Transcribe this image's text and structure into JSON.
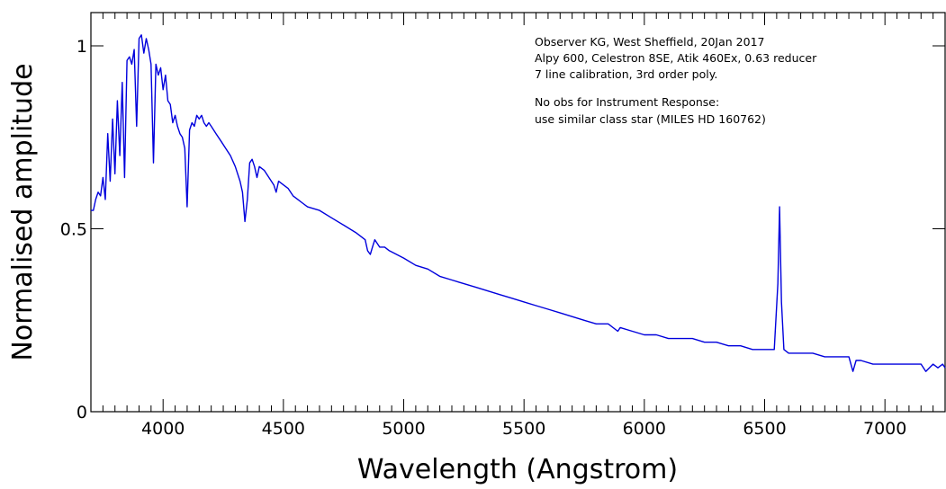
{
  "chart_data": {
    "type": "line",
    "xlabel": "Wavelength  (Angstrom)",
    "ylabel": "Normalised amplitude",
    "xlim": [
      3700,
      7250
    ],
    "ylim": [
      0,
      1.1
    ],
    "x_ticks": [
      4000,
      4500,
      5000,
      5500,
      6000,
      6500,
      7000
    ],
    "x_tick_labels": [
      "4000",
      "4500",
      "5000",
      "5500",
      "6000",
      "6500",
      "7000"
    ],
    "y_ticks": [
      0,
      0.5,
      1
    ],
    "y_tick_labels": [
      "0",
      "0.5",
      "1"
    ],
    "grid": false,
    "line_color": "#0000dd",
    "annotations": [
      "Observer KG, West Sheffield, 20Jan 2017",
      "Alpy 600, Celestron 8SE, Atik 460Ex, 0.63 reducer",
      "7 line calibration, 3rd order poly.",
      "No obs for Instrument Response:",
      "use  similar class star (MILES HD 160762)"
    ],
    "series": [
      {
        "x": [
          3700,
          3710,
          3720,
          3730,
          3740,
          3750,
          3760,
          3770,
          3780,
          3790,
          3800,
          3810,
          3820,
          3830,
          3840,
          3850,
          3860,
          3870,
          3880,
          3890,
          3900,
          3910,
          3920,
          3930,
          3940,
          3950,
          3960,
          3970,
          3980,
          3990,
          4000,
          4010,
          4020,
          4030,
          4040,
          4050,
          4060,
          4070,
          4080,
          4090,
          4100,
          4110,
          4120,
          4130,
          4140,
          4150,
          4160,
          4170,
          4180,
          4190,
          4200,
          4220,
          4240,
          4260,
          4280,
          4300,
          4320,
          4330,
          4340,
          4350,
          4360,
          4370,
          4380,
          4390,
          4400,
          4420,
          4440,
          4460,
          4470,
          4480,
          4500,
          4520,
          4540,
          4560,
          4580,
          4600,
          4650,
          4700,
          4750,
          4800,
          4840,
          4850,
          4861,
          4870,
          4880,
          4900,
          4921,
          4940,
          5000,
          5050,
          5100,
          5150,
          5200,
          5250,
          5300,
          5350,
          5400,
          5450,
          5500,
          5550,
          5600,
          5650,
          5700,
          5750,
          5800,
          5850,
          5890,
          5900,
          5950,
          6000,
          6050,
          6100,
          6150,
          6200,
          6250,
          6300,
          6350,
          6400,
          6450,
          6500,
          6540,
          6555,
          6562,
          6570,
          6580,
          6600,
          6650,
          6700,
          6750,
          6800,
          6850,
          6867,
          6880,
          6900,
          6950,
          7000,
          7050,
          7100,
          7150,
          7170,
          7200,
          7220,
          7240,
          7250
        ],
        "y": [
          0.55,
          0.55,
          0.58,
          0.6,
          0.59,
          0.64,
          0.58,
          0.76,
          0.63,
          0.8,
          0.65,
          0.85,
          0.7,
          0.9,
          0.64,
          0.96,
          0.97,
          0.95,
          0.99,
          0.78,
          1.02,
          1.03,
          0.98,
          1.02,
          0.99,
          0.95,
          0.68,
          0.95,
          0.92,
          0.94,
          0.88,
          0.92,
          0.85,
          0.84,
          0.79,
          0.81,
          0.78,
          0.76,
          0.75,
          0.72,
          0.56,
          0.77,
          0.79,
          0.78,
          0.81,
          0.8,
          0.81,
          0.79,
          0.78,
          0.79,
          0.78,
          0.76,
          0.74,
          0.72,
          0.7,
          0.67,
          0.63,
          0.6,
          0.52,
          0.58,
          0.68,
          0.69,
          0.67,
          0.64,
          0.67,
          0.66,
          0.64,
          0.62,
          0.6,
          0.63,
          0.62,
          0.61,
          0.59,
          0.58,
          0.57,
          0.56,
          0.55,
          0.53,
          0.51,
          0.49,
          0.47,
          0.44,
          0.43,
          0.45,
          0.47,
          0.45,
          0.45,
          0.44,
          0.42,
          0.4,
          0.39,
          0.37,
          0.36,
          0.35,
          0.34,
          0.33,
          0.32,
          0.31,
          0.3,
          0.29,
          0.28,
          0.27,
          0.26,
          0.25,
          0.24,
          0.24,
          0.22,
          0.23,
          0.22,
          0.21,
          0.21,
          0.2,
          0.2,
          0.2,
          0.19,
          0.19,
          0.18,
          0.18,
          0.17,
          0.17,
          0.17,
          0.35,
          0.56,
          0.3,
          0.17,
          0.16,
          0.16,
          0.16,
          0.15,
          0.15,
          0.15,
          0.11,
          0.14,
          0.14,
          0.13,
          0.13,
          0.13,
          0.13,
          0.13,
          0.11,
          0.13,
          0.12,
          0.13,
          0.12
        ]
      }
    ]
  }
}
